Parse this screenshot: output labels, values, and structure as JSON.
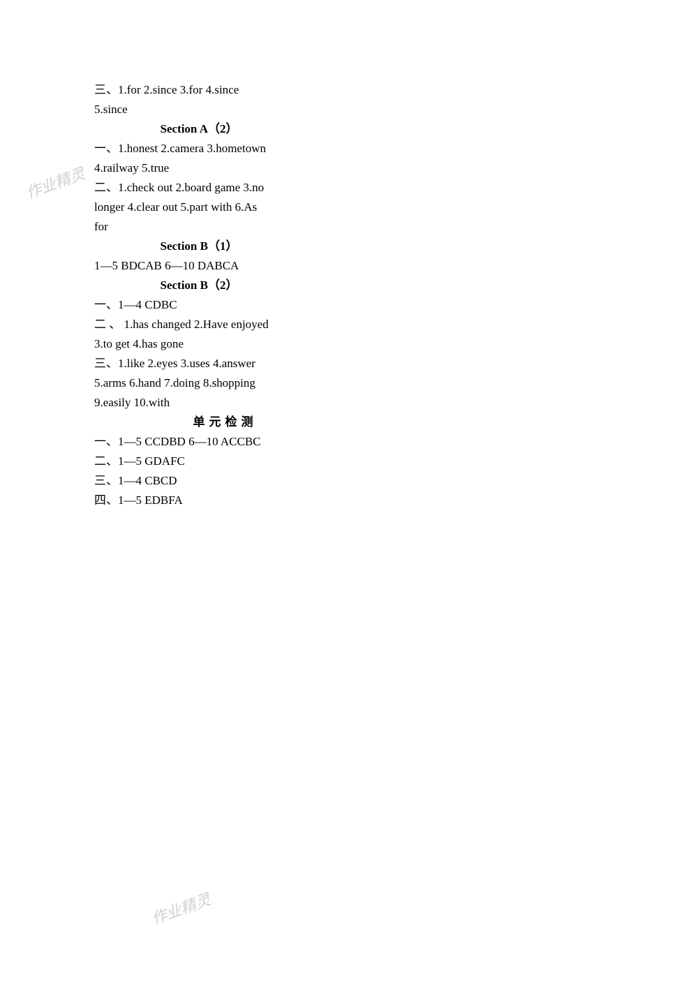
{
  "watermark": "作业精灵",
  "lines": {
    "l1": "三、1.for   2.since   3.for   4.since",
    "l2": "5.since",
    "sec_a2": "Section A（2）",
    "l3": "一、1.honest   2.camera   3.hometown",
    "l4": "4.railway   5.true",
    "l5": "二、1.check out   2.board game   3.no",
    "l6": "longer   4.clear out   5.part with   6.As",
    "l7": "for",
    "sec_b1": "Section B（1）",
    "l8": "1—5   BDCAB   6—10   DABCA",
    "sec_b2": "Section B（2）",
    "l9": "一、1—4   CDBC",
    "l10": "二 、 1.has changed    2.Have enjoyed",
    "l11": "3.to get   4.has gone",
    "l12": "三、1.like   2.eyes   3.uses   4.answer",
    "l13": "5.arms   6.hand   7.doing   8.shopping",
    "l14": "9.easily   10.with",
    "unit": "单元检测",
    "l15": "一、1—5   CCDBD   6—10   ACCBC",
    "l16": "二、1—5   GDAFC",
    "l17": "三、1—4   CBCD",
    "l18": "四、1—5   EDBFA"
  }
}
